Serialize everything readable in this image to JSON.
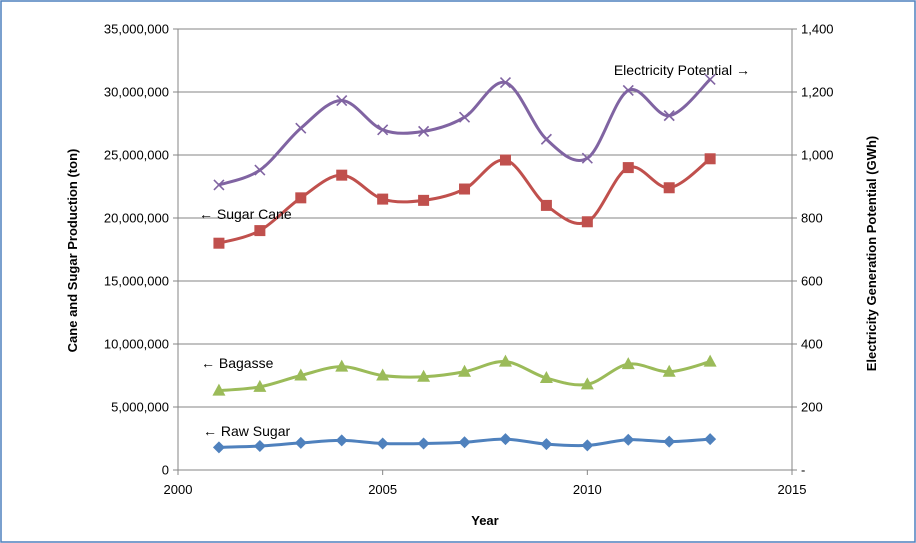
{
  "chart_data": {
    "type": "line",
    "title": "",
    "xlabel": "Year",
    "ylabel": "Cane and Sugar Production (ton)",
    "y2label": "Electricity Generation Potential (GWh)",
    "xlim": [
      2000,
      2015
    ],
    "ylim": [
      0,
      35000000
    ],
    "y2lim": [
      0,
      1400
    ],
    "x_ticks": [
      "2000",
      "2005",
      "2010",
      "2015"
    ],
    "x_tick_values": [
      2000,
      2005,
      2010,
      2015
    ],
    "y_ticks": [
      "0",
      "5,000,000",
      "10,000,000",
      "15,000,000",
      "20,000,000",
      "25,000,000",
      "30,000,000",
      "35,000,000"
    ],
    "y_tick_values": [
      0,
      5000000,
      10000000,
      15000000,
      20000000,
      25000000,
      30000000,
      35000000
    ],
    "y2_ticks": [
      "-",
      "200",
      "400",
      "600",
      "800",
      "1,000",
      "1,200",
      "1,400"
    ],
    "y2_tick_values": [
      0,
      200,
      400,
      600,
      800,
      1000,
      1200,
      1400
    ],
    "grid": "horizontal",
    "x": [
      2001,
      2002,
      2003,
      2004,
      2005,
      2006,
      2007,
      2008,
      2009,
      2010,
      2011,
      2012,
      2013
    ],
    "series": [
      {
        "name": "Sugar Cane",
        "label": "← Sugar Cane",
        "axis": "left",
        "color": "#c0504d",
        "marker": "square",
        "values": [
          18000000,
          19000000,
          21600000,
          23400000,
          21500000,
          21400000,
          22300000,
          24600000,
          21000000,
          19700000,
          24000000,
          22400000,
          24700000
        ]
      },
      {
        "name": "Bagasse",
        "label": "← Bagasse",
        "axis": "left",
        "color": "#9bbb59",
        "marker": "triangle",
        "values": [
          6300000,
          6600000,
          7500000,
          8200000,
          7500000,
          7400000,
          7800000,
          8600000,
          7300000,
          6800000,
          8400000,
          7800000,
          8600000
        ]
      },
      {
        "name": "Raw Sugar",
        "label": "← Raw Sugar",
        "axis": "left",
        "color": "#4f81bd",
        "marker": "diamond",
        "values": [
          1800000,
          1900000,
          2150000,
          2350000,
          2100000,
          2100000,
          2200000,
          2450000,
          2050000,
          1950000,
          2400000,
          2250000,
          2450000
        ]
      },
      {
        "name": "Electricity Potential",
        "label": "Electricity Potential →",
        "axis": "right",
        "color": "#8064a2",
        "marker": "x",
        "values": [
          905,
          952,
          1085,
          1173,
          1080,
          1075,
          1120,
          1230,
          1050,
          990,
          1205,
          1125,
          1240
        ]
      }
    ]
  }
}
